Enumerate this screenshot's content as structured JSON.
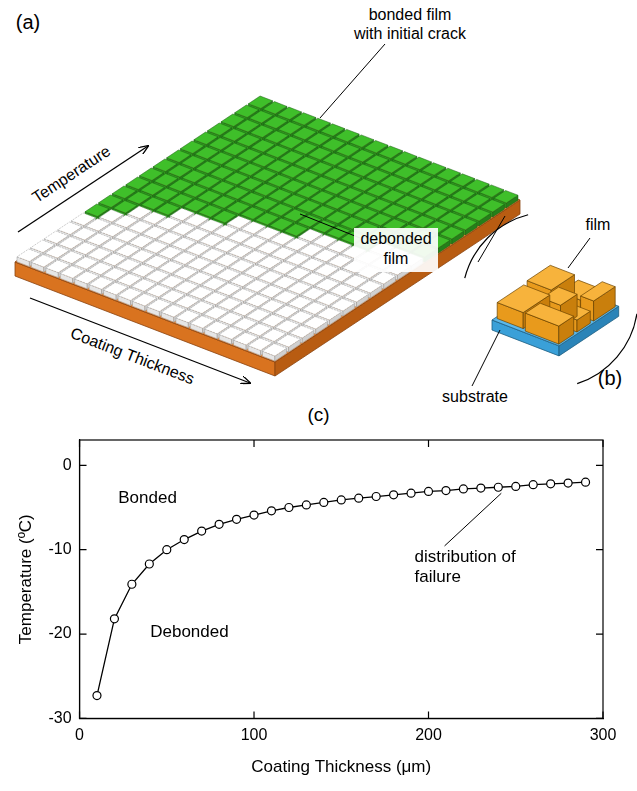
{
  "panel_a": {
    "label": "(a)",
    "y_arrow": "Temperature",
    "x_arrow": "Coating Thickness",
    "bonded_label": [
      "bonded film",
      "with initial crack"
    ],
    "debonded_label": [
      "debonded",
      "film"
    ]
  },
  "panel_b": {
    "label": "(b)",
    "film_label": "film",
    "substrate_label": "substrate"
  },
  "panel_c": {
    "label": "(c)"
  },
  "chart_data": {
    "type": "line",
    "x_label": "Coating Thickness (μm)",
    "y_label": "Temperature (ºC)",
    "x": [
      10,
      20,
      30,
      40,
      50,
      60,
      70,
      80,
      90,
      100,
      110,
      120,
      130,
      140,
      150,
      160,
      170,
      180,
      190,
      200,
      210,
      220,
      230,
      240,
      250,
      260,
      270,
      280,
      290
    ],
    "values": [
      -27.3,
      -18.2,
      -14.1,
      -11.7,
      -10.0,
      -8.8,
      -7.8,
      -7.0,
      -6.4,
      -5.9,
      -5.4,
      -5.0,
      -4.7,
      -4.4,
      -4.1,
      -3.9,
      -3.7,
      -3.5,
      -3.3,
      -3.1,
      -3.0,
      -2.8,
      -2.7,
      -2.6,
      -2.5,
      -2.3,
      -2.2,
      -2.1,
      -2.0
    ],
    "color": "#000000",
    "marker": "circle",
    "line_style": "solid",
    "xlim": [
      0,
      300
    ],
    "xticks": [
      0,
      100,
      200,
      300
    ],
    "ylim": [
      -30,
      3
    ],
    "yticks": [
      -30,
      -20,
      -10,
      0
    ],
    "grid": false,
    "annotations": [
      [
        "Bonded"
      ],
      [
        "Debonded"
      ],
      [
        "distribution of",
        "failure"
      ]
    ]
  }
}
